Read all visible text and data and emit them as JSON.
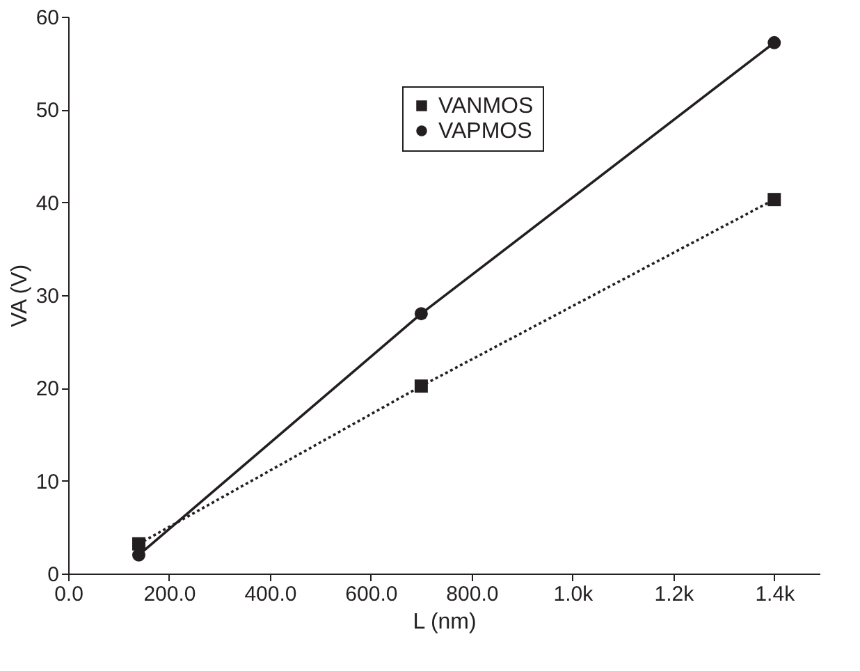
{
  "chart_data": {
    "type": "line",
    "xlabel": "L (nm)",
    "ylabel": "VA (V)",
    "x": [
      140,
      700,
      1400
    ],
    "series": [
      {
        "name": "VANMOS",
        "color": "#231f20",
        "values": [
          3.2,
          20.2,
          40.3
        ],
        "marker": "square",
        "line_style": "dotted"
      },
      {
        "name": "VAPMOS",
        "color": "#231f20",
        "values": [
          2.0,
          28.0,
          57.2
        ],
        "marker": "circle",
        "line_style": "solid"
      }
    ],
    "xlim": [
      0,
      1490
    ],
    "xticks": [
      {
        "value": 0,
        "label": "0.0"
      },
      {
        "value": 200,
        "label": "200.0"
      },
      {
        "value": 400,
        "label": "400.0"
      },
      {
        "value": 600,
        "label": "600.0"
      },
      {
        "value": 800,
        "label": "800.0"
      },
      {
        "value": 1000,
        "label": "1.0k"
      },
      {
        "value": 1200,
        "label": "1.2k"
      },
      {
        "value": 1400,
        "label": "1.4k"
      }
    ],
    "ylim": [
      0,
      60
    ],
    "yticks": [
      0,
      10,
      20,
      30,
      40,
      50,
      60
    ],
    "grid": false,
    "legend": "top"
  }
}
